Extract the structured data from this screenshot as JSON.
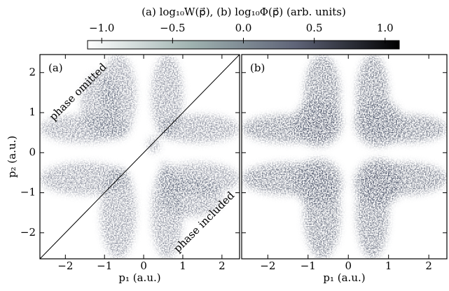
{
  "colorbar": {
    "label": "(a) log₁₀W(p⃗), (b) log₁₀Φ(p⃗) (arb. units)",
    "clim": [
      -1.1,
      1.1
    ],
    "colors": [
      "#ffffff",
      "#9fb2b0",
      "#5f6478",
      "#000000"
    ],
    "ticks": [
      {
        "value": -1.0,
        "label": "−1.0"
      },
      {
        "value": -0.5,
        "label": "−0.5"
      },
      {
        "value": 0.0,
        "label": "0.0"
      },
      {
        "value": 0.5,
        "label": "0.5"
      },
      {
        "value": 1.0,
        "label": "1.0"
      }
    ]
  },
  "chart_data": [
    {
      "type": "heatmap",
      "panel_label": "(a)",
      "xlabel": "p₁ (a.u.)",
      "ylabel": "p₂ (a.u.)",
      "annotations": [
        "phase omitted",
        "phase included"
      ],
      "xlim": [
        -2.65,
        2.45
      ],
      "ylim": [
        -2.65,
        2.45
      ],
      "xticks": [
        {
          "value": -2,
          "label": "−2"
        },
        {
          "value": -1,
          "label": "−1"
        },
        0,
        1,
        2
      ],
      "yticks": [
        {
          "value": -2,
          "label": "−2"
        },
        {
          "value": -1,
          "label": "−1"
        },
        0,
        1,
        2
      ]
    },
    {
      "type": "heatmap",
      "panel_label": "(b)",
      "xlabel": "p₁ (a.u.)",
      "xlim": [
        -2.65,
        2.45
      ],
      "ylim": [
        -2.65,
        2.45
      ],
      "xticks": [
        {
          "value": -2,
          "label": "−2"
        },
        {
          "value": -1,
          "label": "−1"
        },
        0,
        1,
        2
      ]
    }
  ]
}
